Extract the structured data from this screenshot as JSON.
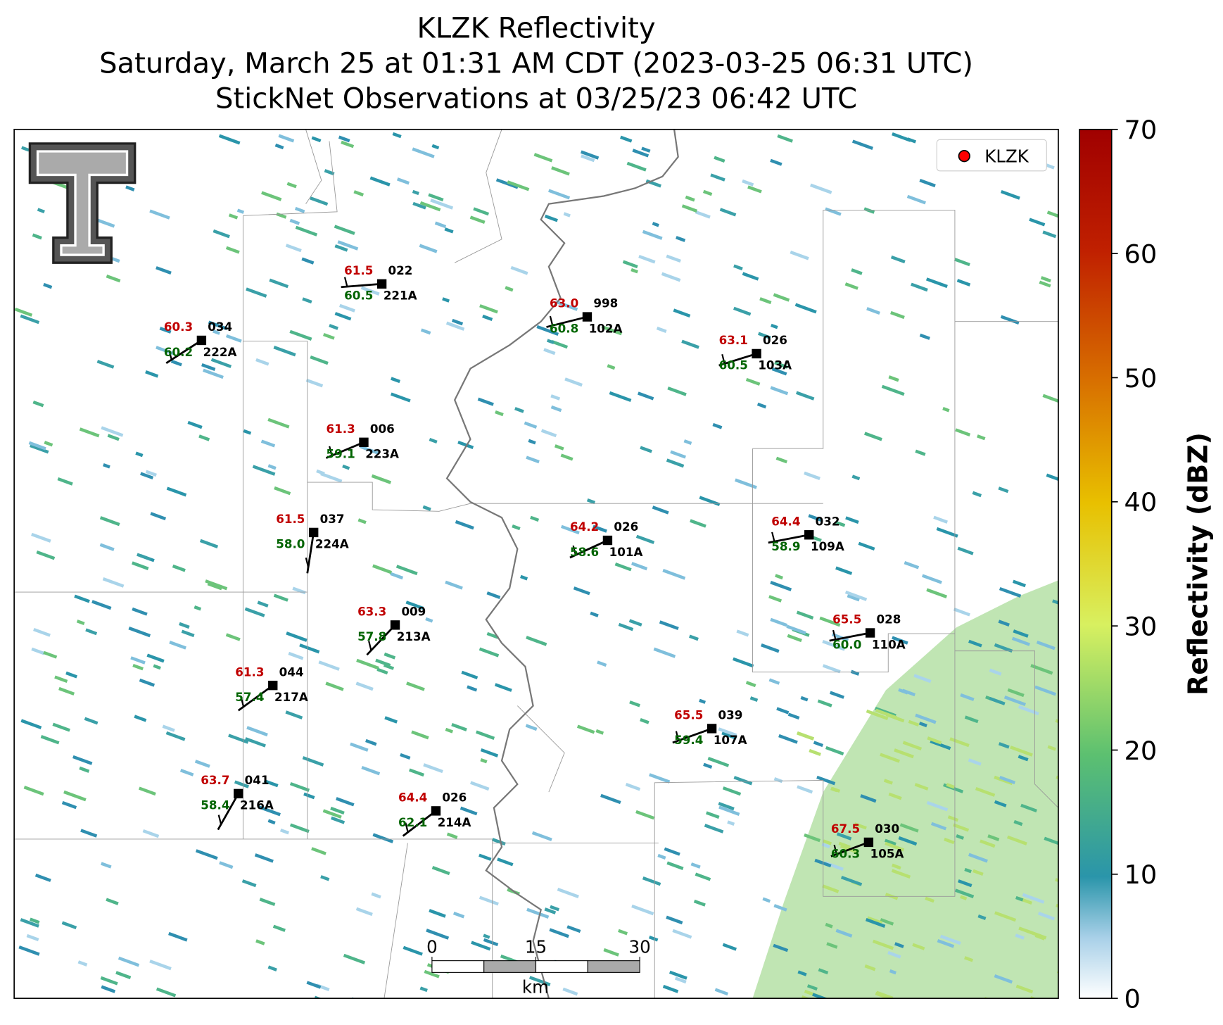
{
  "header": {
    "title_lines": [
      "KLZK Reflectivity",
      "Saturday, March 25 at 01:31 AM CDT (2023-03-25 06:31 UTC)",
      "StickNet Observations at 03/25/23 06:42 UTC"
    ]
  },
  "legend": {
    "label": "KLZK",
    "color": "#ff0000"
  },
  "colorbar": {
    "label": "Reflectivity (dBZ)",
    "lim": [
      0,
      70
    ],
    "ticks": [
      0,
      10,
      20,
      30,
      40,
      50,
      60,
      70
    ]
  },
  "scale_bar": {
    "ticks": [
      0,
      15,
      30
    ],
    "unit": "km"
  },
  "stations": [
    {
      "id": "222A",
      "temp": "60.3",
      "dew": "60.2",
      "pres": "034"
    },
    {
      "id": "221A",
      "temp": "61.5",
      "dew": "60.5",
      "pres": "022"
    },
    {
      "id": "102A",
      "temp": "63.0",
      "dew": "60.8",
      "pres": "998"
    },
    {
      "id": "103A",
      "temp": "63.1",
      "dew": "60.5",
      "pres": "026"
    },
    {
      "id": "223A",
      "temp": "61.3",
      "dew": "59.1",
      "pres": "006"
    },
    {
      "id": "224A",
      "temp": "61.5",
      "dew": "58.0",
      "pres": "037"
    },
    {
      "id": "101A",
      "temp": "64.2",
      "dew": "58.6",
      "pres": "026"
    },
    {
      "id": "109A",
      "temp": "64.4",
      "dew": "58.9",
      "pres": "032"
    },
    {
      "id": "213A",
      "temp": "63.3",
      "dew": "57.8",
      "pres": "009"
    },
    {
      "id": "110A",
      "temp": "65.5",
      "dew": "60.0",
      "pres": "028"
    },
    {
      "id": "217A",
      "temp": "61.3",
      "dew": "57.4",
      "pres": "044"
    },
    {
      "id": "107A",
      "temp": "65.5",
      "dew": "59.4",
      "pres": "039"
    },
    {
      "id": "216A",
      "temp": "63.7",
      "dew": "58.4",
      "pres": "041"
    },
    {
      "id": "214A",
      "temp": "64.4",
      "dew": "62.1",
      "pres": "026"
    },
    {
      "id": "105A",
      "temp": "67.5",
      "dew": "60.3",
      "pres": "030"
    }
  ]
}
